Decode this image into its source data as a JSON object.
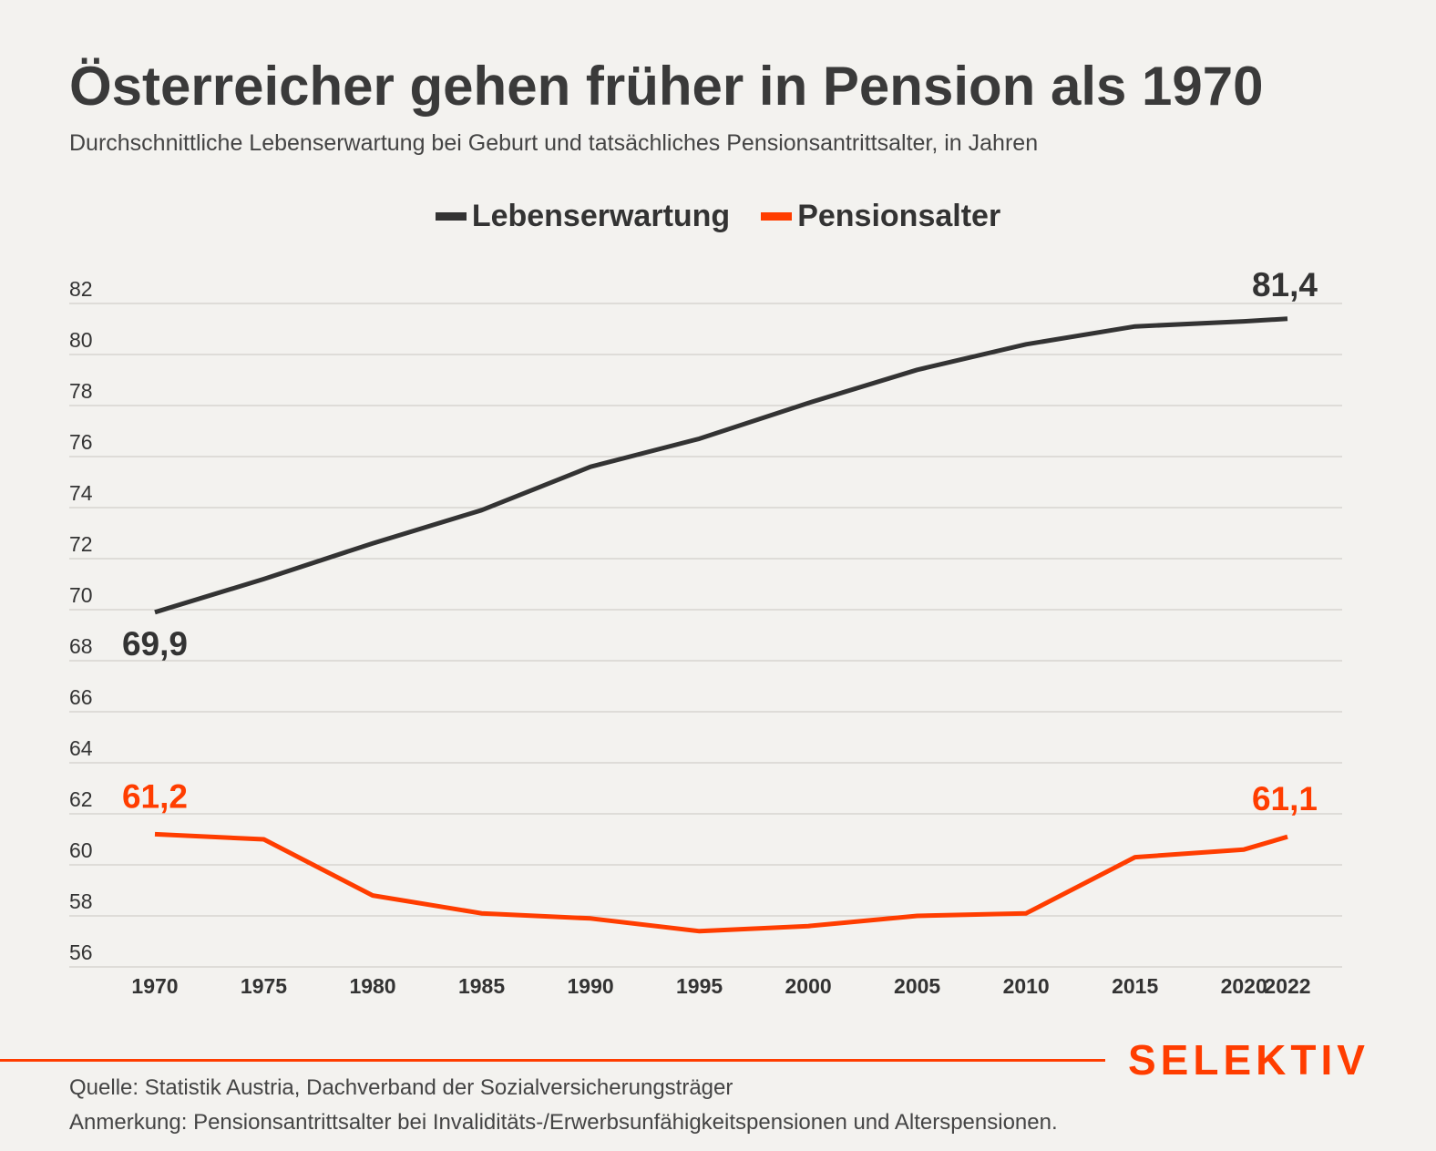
{
  "header": {
    "title": "Österreicher gehen früher in Pension als 1970",
    "subtitle": "Durchschnittliche Lebenserwartung bei Geburt und tatsächliches Pensionsantrittsalter, in Jahren"
  },
  "colors": {
    "background": "#f3f2ef",
    "life_expectancy": "#333333",
    "pension_age": "#ff3d00",
    "grid": "#c8c6c2",
    "brand": "#ff3d00"
  },
  "chart_data": {
    "type": "line",
    "title": "Österreicher gehen früher in Pension als 1970",
    "subtitle": "Durchschnittliche Lebenserwartung bei Geburt und tatsächliches Pensionsantrittsalter, in Jahren",
    "x": [
      "1970",
      "1975",
      "1980",
      "1985",
      "1990",
      "1995",
      "2000",
      "2005",
      "2010",
      "2015",
      "2020",
      "2022"
    ],
    "series": [
      {
        "name": "Lebenserwartung",
        "values": [
          69.9,
          71.2,
          72.6,
          73.9,
          75.6,
          76.7,
          78.1,
          79.4,
          80.4,
          81.1,
          81.3,
          81.4
        ]
      },
      {
        "name": "Pensionsalter",
        "values": [
          61.2,
          61.0,
          58.8,
          58.1,
          57.9,
          57.4,
          57.6,
          58.0,
          58.1,
          60.3,
          60.6,
          61.1
        ]
      }
    ],
    "ylim": [
      56,
      82
    ],
    "yticks": [
      "56",
      "58",
      "60",
      "62",
      "64",
      "66",
      "68",
      "70",
      "72",
      "74",
      "76",
      "78",
      "80",
      "82"
    ],
    "xticks": [
      "1970",
      "1975",
      "1980",
      "1985",
      "1990",
      "1995",
      "2000",
      "2005",
      "2010",
      "2015",
      "2020",
      "2022"
    ],
    "annotations": {
      "life_start": "69,9",
      "life_end": "81,4",
      "pension_start": "61,2",
      "pension_end": "61,1"
    },
    "grid": true,
    "legend_position": "top-center"
  },
  "footer": {
    "brand": "SELEKTIV",
    "source": "Quelle: Statistik Austria, Dachverband der Sozialversicherungsträger",
    "note": "Anmerkung: Pensionsantrittsalter bei Invaliditäts-/Erwerbsunfähigkeitspensionen und Alterspensionen."
  }
}
